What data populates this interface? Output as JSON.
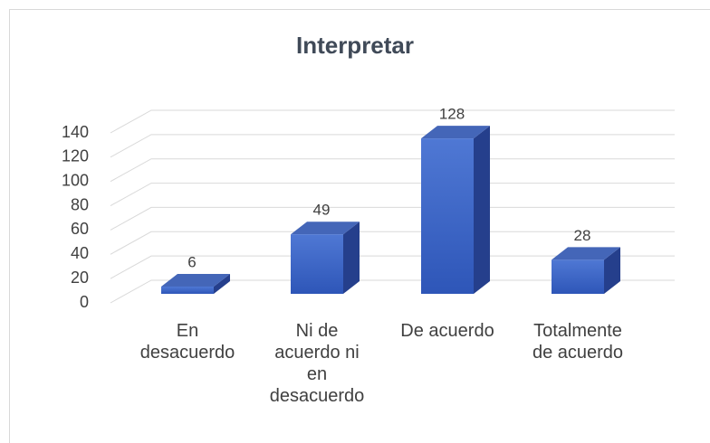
{
  "chart_data": {
    "type": "bar3d",
    "title": "Interpretar",
    "categories": [
      "En desacuerdo",
      "Ni de acuerdo ni en desacuerdo",
      "De acuerdo",
      "Totalmente de acuerdo"
    ],
    "values": [
      6,
      49,
      128,
      28
    ],
    "color": "#3a64c8",
    "ylim": [
      0,
      140
    ],
    "yticks": [
      0,
      20,
      40,
      60,
      80,
      100,
      120,
      140
    ],
    "grid": true
  }
}
